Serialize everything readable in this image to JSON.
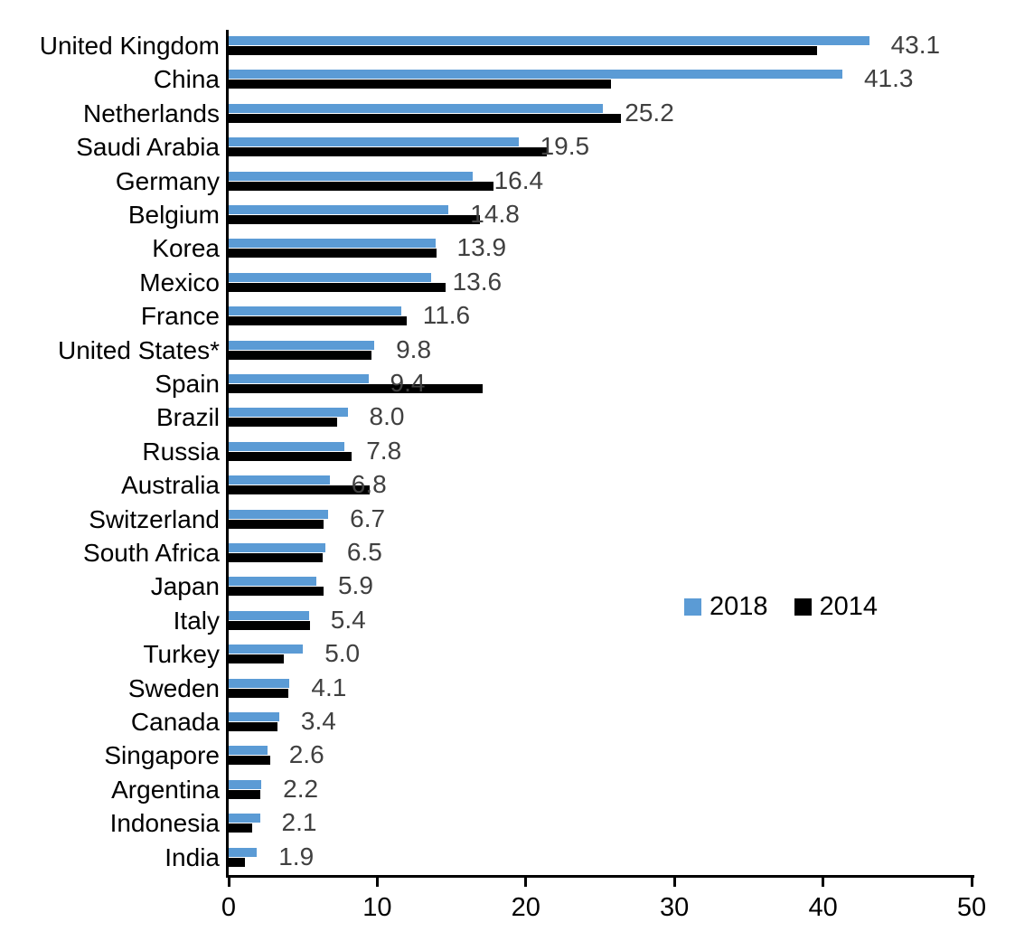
{
  "chart_data": {
    "type": "bar",
    "orientation": "horizontal",
    "title": "",
    "xlabel": "",
    "ylabel": "",
    "xlim": [
      0,
      50
    ],
    "x_ticks": [
      0,
      10,
      20,
      30,
      40,
      50
    ],
    "x_tick_labels": [
      "0",
      "10",
      "20",
      "30",
      "40",
      "50"
    ],
    "grid": false,
    "legend_position": "middle-right",
    "categories": [
      "United Kingdom",
      "China",
      "Netherlands",
      "Saudi Arabia",
      "Germany",
      "Belgium",
      "Korea",
      "Mexico",
      "France",
      "United States*",
      "Spain",
      "Brazil",
      "Russia",
      "Australia",
      "Switzerland",
      "South Africa",
      "Japan",
      "Italy",
      "Turkey",
      "Sweden",
      "Canada",
      "Singapore",
      "Argentina",
      "Indonesia",
      "India"
    ],
    "series": [
      {
        "name": "2018",
        "color": "#5B9BD5",
        "values": [
          43.1,
          41.3,
          25.2,
          19.5,
          16.4,
          14.8,
          13.9,
          13.6,
          11.6,
          9.8,
          9.4,
          8.0,
          7.8,
          6.8,
          6.7,
          6.5,
          5.9,
          5.4,
          5.0,
          4.1,
          3.4,
          2.6,
          2.2,
          2.1,
          1.9
        ],
        "data_labels": [
          "43.1",
          "41.3",
          "25.2",
          "19.5",
          "16.4",
          "14.8",
          "13.9",
          "13.6",
          "11.6",
          "9.8",
          "9.4",
          "8.0",
          "7.8",
          "6.8",
          "6.7",
          "6.5",
          "5.9",
          "5.4",
          "5.0",
          "4.1",
          "3.4",
          "2.6",
          "2.2",
          "2.1",
          "1.9"
        ]
      },
      {
        "name": "2014",
        "color": "#000000",
        "values": [
          39.6,
          25.7,
          26.4,
          21.4,
          17.8,
          16.9,
          14.0,
          14.6,
          12.0,
          9.6,
          17.1,
          7.3,
          8.3,
          9.5,
          6.4,
          6.3,
          6.4,
          5.5,
          3.7,
          4.0,
          3.3,
          2.8,
          2.1,
          1.6,
          1.1
        ]
      }
    ],
    "data_label_color": "#404040",
    "axis_color": "#000000"
  }
}
